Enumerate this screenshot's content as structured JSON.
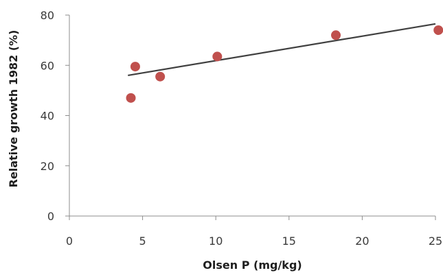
{
  "chart_data": {
    "type": "scatter",
    "xlabel": "Olsen P (mg/kg)",
    "ylabel": "Relative growth 1982 (%)",
    "xlim": [
      0,
      25
    ],
    "ylim": [
      0,
      80
    ],
    "x_ticks": [
      0,
      5,
      10,
      15,
      20,
      25
    ],
    "y_ticks": [
      0,
      20,
      40,
      60,
      80
    ],
    "grid": false,
    "legend": "none",
    "colors": {
      "points": "#c0504d",
      "trendline": "#404040",
      "axis": "#8c8c8c"
    },
    "series": [
      {
        "points": [
          {
            "x": 4.2,
            "y": 47
          },
          {
            "x": 4.5,
            "y": 59.5
          },
          {
            "x": 6.2,
            "y": 55.5
          },
          {
            "x": 10.1,
            "y": 63.5
          },
          {
            "x": 18.2,
            "y": 72
          },
          {
            "x": 25.2,
            "y": 74
          }
        ]
      }
    ],
    "trendline": {
      "type": "linear",
      "start": {
        "x": 4.0,
        "y": 56
      },
      "end": {
        "x": 25.0,
        "y": 76.5
      }
    }
  }
}
